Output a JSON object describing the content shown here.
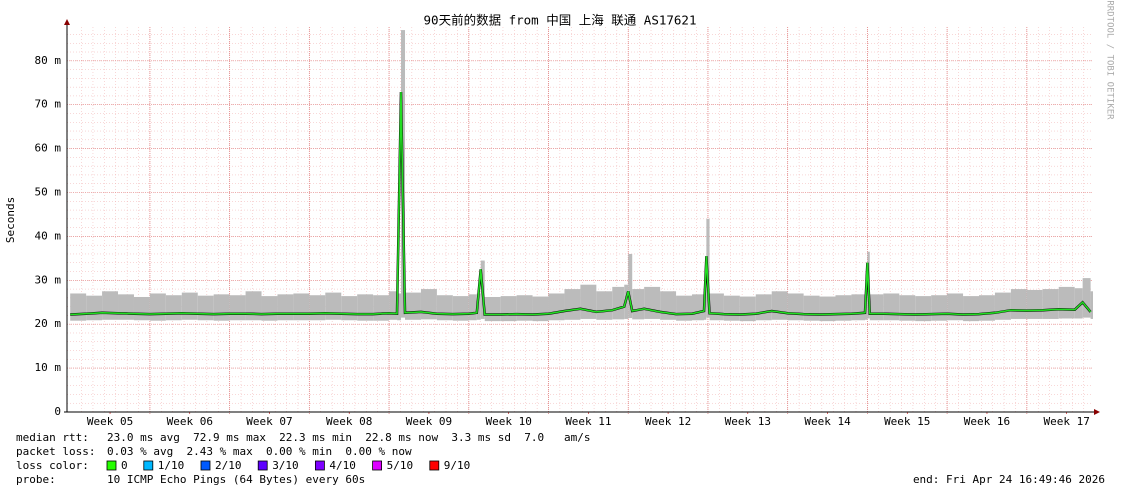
{
  "chart_data": {
    "type": "smokeping",
    "title": "90天前的数据 from 中国 上海 联通 AS17621",
    "ylabel": "Seconds",
    "watermark": "RRDTOOL / TOBI OETIKER",
    "ylim": [
      0,
      0.0877
    ],
    "yticks": [
      0,
      {
        "value": 0.01,
        "label": "10 m"
      },
      {
        "value": 0.02,
        "label": "20 m"
      },
      {
        "value": 0.03,
        "label": "30 m"
      },
      {
        "value": 0.04,
        "label": "40 m"
      },
      {
        "value": 0.05,
        "label": "50 m"
      },
      {
        "value": 0.06,
        "label": "60 m"
      },
      {
        "value": 0.07,
        "label": "70 m"
      },
      {
        "value": 0.08,
        "label": "80 m"
      }
    ],
    "xlim": [
      4.96,
      17.83
    ],
    "xticks": [
      {
        "value": 5.5,
        "label": "Week 05"
      },
      {
        "value": 6.5,
        "label": "Week 06"
      },
      {
        "value": 7.5,
        "label": "Week 07"
      },
      {
        "value": 8.5,
        "label": "Week 08"
      },
      {
        "value": 9.5,
        "label": "Week 09"
      },
      {
        "value": 10.5,
        "label": "Week 10"
      },
      {
        "value": 11.5,
        "label": "Week 11"
      },
      {
        "value": 12.5,
        "label": "Week 12"
      },
      {
        "value": 13.5,
        "label": "Week 13"
      },
      {
        "value": 14.5,
        "label": "Week 14"
      },
      {
        "value": 15.5,
        "label": "Week 15"
      },
      {
        "value": 16.5,
        "label": "Week 16"
      },
      {
        "value": 17.5,
        "label": "Week 17"
      }
    ],
    "grid": true,
    "x": [
      5.0,
      5.2,
      5.4,
      5.6,
      5.8,
      6.0,
      6.2,
      6.4,
      6.6,
      6.8,
      7.0,
      7.2,
      7.4,
      7.6,
      7.8,
      8.0,
      8.2,
      8.4,
      8.6,
      8.8,
      9.0,
      9.1,
      9.15,
      9.2,
      9.4,
      9.6,
      9.8,
      10.0,
      10.1,
      10.15,
      10.2,
      10.4,
      10.6,
      10.8,
      11.0,
      11.2,
      11.4,
      11.6,
      11.8,
      11.95,
      12.0,
      12.05,
      12.2,
      12.4,
      12.6,
      12.8,
      12.95,
      12.98,
      13.02,
      13.2,
      13.4,
      13.6,
      13.8,
      14.0,
      14.2,
      14.4,
      14.6,
      14.8,
      14.97,
      15.0,
      15.03,
      15.2,
      15.4,
      15.6,
      15.8,
      16.0,
      16.2,
      16.4,
      16.6,
      16.8,
      17.0,
      17.2,
      17.4,
      17.6,
      17.7,
      17.8
    ],
    "median": {
      "color": "#22dd22",
      "values": [
        0.0222,
        0.0224,
        0.0226,
        0.0225,
        0.0224,
        0.0223,
        0.0224,
        0.0225,
        0.0224,
        0.0223,
        0.0224,
        0.0224,
        0.0223,
        0.0224,
        0.0224,
        0.0224,
        0.0225,
        0.0224,
        0.0223,
        0.0223,
        0.0225,
        0.0224,
        0.0729,
        0.0226,
        0.0228,
        0.0224,
        0.0223,
        0.0224,
        0.0226,
        0.0325,
        0.0222,
        0.0222,
        0.0223,
        0.0222,
        0.0224,
        0.023,
        0.0235,
        0.0228,
        0.0232,
        0.024,
        0.0275,
        0.023,
        0.0235,
        0.0228,
        0.0223,
        0.0224,
        0.023,
        0.0355,
        0.0225,
        0.0223,
        0.0222,
        0.0224,
        0.023,
        0.0225,
        0.0223,
        0.0222,
        0.0223,
        0.0224,
        0.0226,
        0.034,
        0.0224,
        0.0224,
        0.0223,
        0.0222,
        0.0223,
        0.0224,
        0.0222,
        0.0223,
        0.0226,
        0.0232,
        0.0231,
        0.0232,
        0.0234,
        0.0233,
        0.025,
        0.0228
      ]
    },
    "smoke": {
      "color": "#bbbbbb",
      "low": [
        0.0208,
        0.0209,
        0.021,
        0.021,
        0.0209,
        0.0208,
        0.0209,
        0.021,
        0.0209,
        0.0208,
        0.0209,
        0.0209,
        0.0208,
        0.0209,
        0.0209,
        0.0209,
        0.021,
        0.0209,
        0.0208,
        0.0208,
        0.021,
        0.0209,
        0.0215,
        0.021,
        0.0211,
        0.0209,
        0.0208,
        0.0209,
        0.021,
        0.0212,
        0.0207,
        0.0207,
        0.0208,
        0.0207,
        0.0209,
        0.021,
        0.0212,
        0.021,
        0.0211,
        0.0212,
        0.0214,
        0.0211,
        0.0212,
        0.021,
        0.0208,
        0.0209,
        0.021,
        0.0215,
        0.0209,
        0.0208,
        0.0207,
        0.0209,
        0.021,
        0.0209,
        0.0208,
        0.0207,
        0.0208,
        0.0209,
        0.021,
        0.0213,
        0.0209,
        0.0209,
        0.0208,
        0.0207,
        0.0208,
        0.0209,
        0.0207,
        0.0208,
        0.021,
        0.0212,
        0.0212,
        0.0212,
        0.0213,
        0.0213,
        0.0215,
        0.0212
      ],
      "high": [
        0.027,
        0.0265,
        0.0275,
        0.0268,
        0.0262,
        0.027,
        0.0266,
        0.0272,
        0.0265,
        0.0268,
        0.0266,
        0.0275,
        0.0264,
        0.0268,
        0.027,
        0.0266,
        0.0272,
        0.0264,
        0.0268,
        0.0266,
        0.0275,
        0.027,
        0.087,
        0.0272,
        0.028,
        0.0266,
        0.0264,
        0.0268,
        0.027,
        0.0345,
        0.0262,
        0.0264,
        0.0266,
        0.0263,
        0.027,
        0.028,
        0.029,
        0.0275,
        0.0285,
        0.029,
        0.036,
        0.028,
        0.0285,
        0.0275,
        0.0265,
        0.0268,
        0.028,
        0.044,
        0.027,
        0.0265,
        0.0263,
        0.0268,
        0.0275,
        0.027,
        0.0265,
        0.0263,
        0.0266,
        0.0268,
        0.0275,
        0.0365,
        0.0268,
        0.027,
        0.0266,
        0.0264,
        0.0266,
        0.027,
        0.0264,
        0.0266,
        0.0272,
        0.028,
        0.0278,
        0.028,
        0.0285,
        0.0282,
        0.0305,
        0.0275
      ]
    },
    "stats": [
      {
        "label": "median rtt:",
        "text": "23.0 ms avg  72.9 ms max  22.3 ms min  22.8 ms now  3.3 ms sd  7.0   am/s"
      },
      {
        "label": "packet loss:",
        "text": "0.03 % avg  2.43 % max  0.00 % min  0.00 % now"
      }
    ],
    "loss_label": "loss color:",
    "loss_colors": [
      {
        "name": "0",
        "color": "#26ff00"
      },
      {
        "name": "1/10",
        "color": "#00b8ff"
      },
      {
        "name": "2/10",
        "color": "#0059ff"
      },
      {
        "name": "3/10",
        "color": "#5e00ff"
      },
      {
        "name": "4/10",
        "color": "#7e00ff"
      },
      {
        "name": "5/10",
        "color": "#dd00ff"
      },
      {
        "name": "9/10",
        "color": "#ff0000"
      }
    ],
    "probe": {
      "label": "probe:",
      "text": "10 ICMP Echo Pings (64 Bytes) every 60s"
    },
    "end": "end: Fri Apr 24 16:49:46 2026"
  }
}
